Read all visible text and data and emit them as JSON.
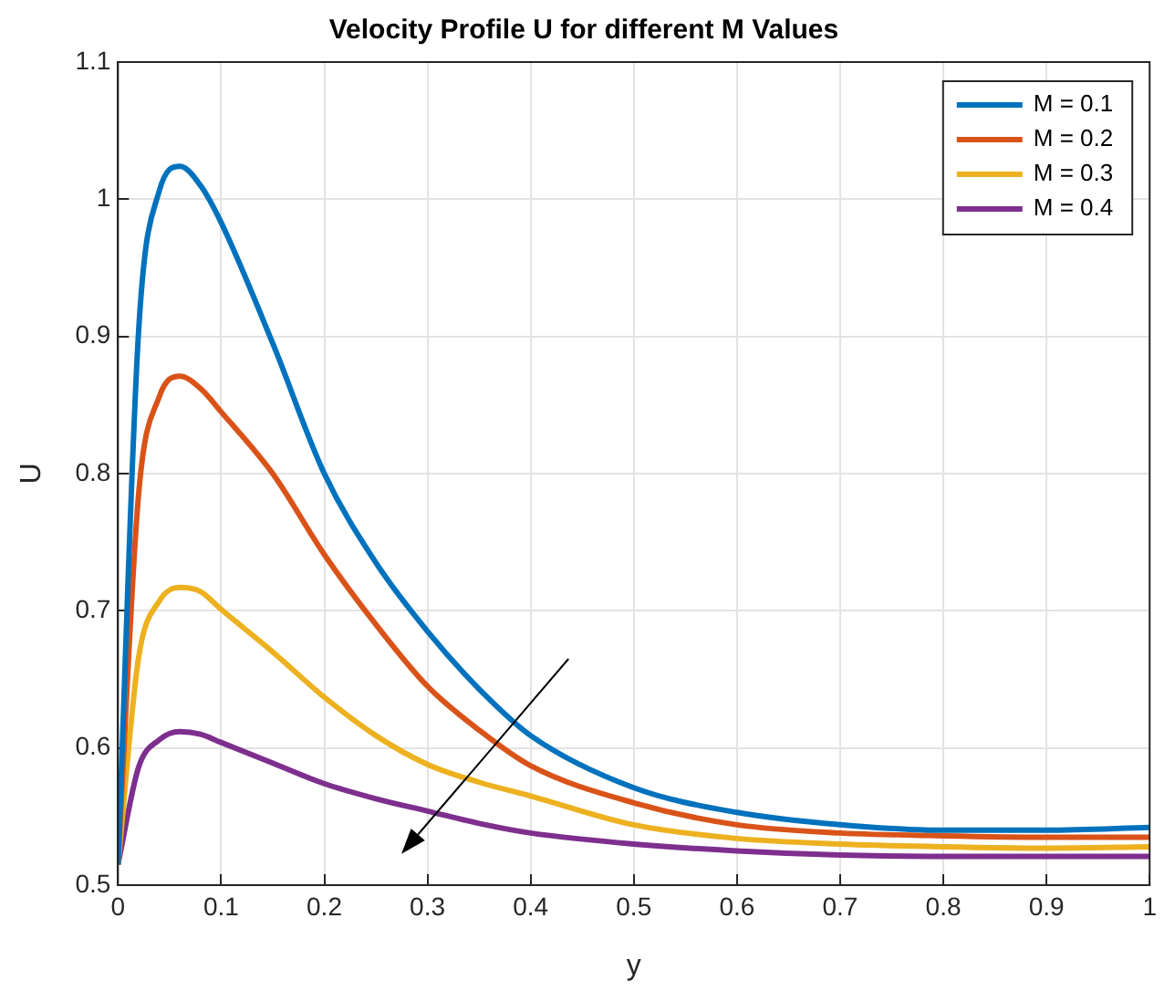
{
  "chart_data": {
    "type": "line",
    "title": "Velocity Profile U for different M Values",
    "xlabel": "y",
    "ylabel": "U",
    "x": [
      0,
      0.02,
      0.04,
      0.06,
      0.08,
      0.1,
      0.15,
      0.2,
      0.25,
      0.3,
      0.35,
      0.4,
      0.5,
      0.6,
      0.7,
      0.8,
      0.9,
      1
    ],
    "series": [
      {
        "name": "M = 0.1",
        "color": "#0072bd",
        "values": [
          0.515,
          0.904,
          1.006,
          1.024,
          1.01,
          0.983,
          0.895,
          0.8,
          0.735,
          0.685,
          0.643,
          0.609,
          0.571,
          0.553,
          0.544,
          0.54,
          0.54,
          0.542
        ]
      },
      {
        "name": "M = 0.2",
        "color": "#d95319",
        "values": [
          0.515,
          0.785,
          0.856,
          0.871,
          0.862,
          0.845,
          0.8,
          0.741,
          0.69,
          0.645,
          0.613,
          0.587,
          0.56,
          0.544,
          0.538,
          0.536,
          0.535,
          0.535
        ]
      },
      {
        "name": "M = 0.3",
        "color": "#edb120",
        "values": [
          0.515,
          0.666,
          0.707,
          0.717,
          0.714,
          0.701,
          0.67,
          0.637,
          0.609,
          0.588,
          0.575,
          0.565,
          0.544,
          0.534,
          0.53,
          0.528,
          0.527,
          0.528
        ]
      },
      {
        "name": "M = 0.4",
        "color": "#7e2f8e",
        "values": [
          0.515,
          0.586,
          0.606,
          0.612,
          0.61,
          0.604,
          0.589,
          0.574,
          0.563,
          0.554,
          0.545,
          0.538,
          0.53,
          0.525,
          0.522,
          0.521,
          0.521,
          0.521
        ]
      }
    ],
    "xlim": [
      0,
      1
    ],
    "xticks": [
      0,
      0.1,
      0.2,
      0.3,
      0.4,
      0.5,
      0.6,
      0.7,
      0.8,
      0.9,
      1
    ],
    "ylim": [
      0.5,
      1.1
    ],
    "yticks": [
      0.5,
      0.6,
      0.7,
      0.8,
      0.9,
      1,
      1.1
    ],
    "grid": true,
    "legend": "top right",
    "marker": "none",
    "line_style": "solid"
  }
}
